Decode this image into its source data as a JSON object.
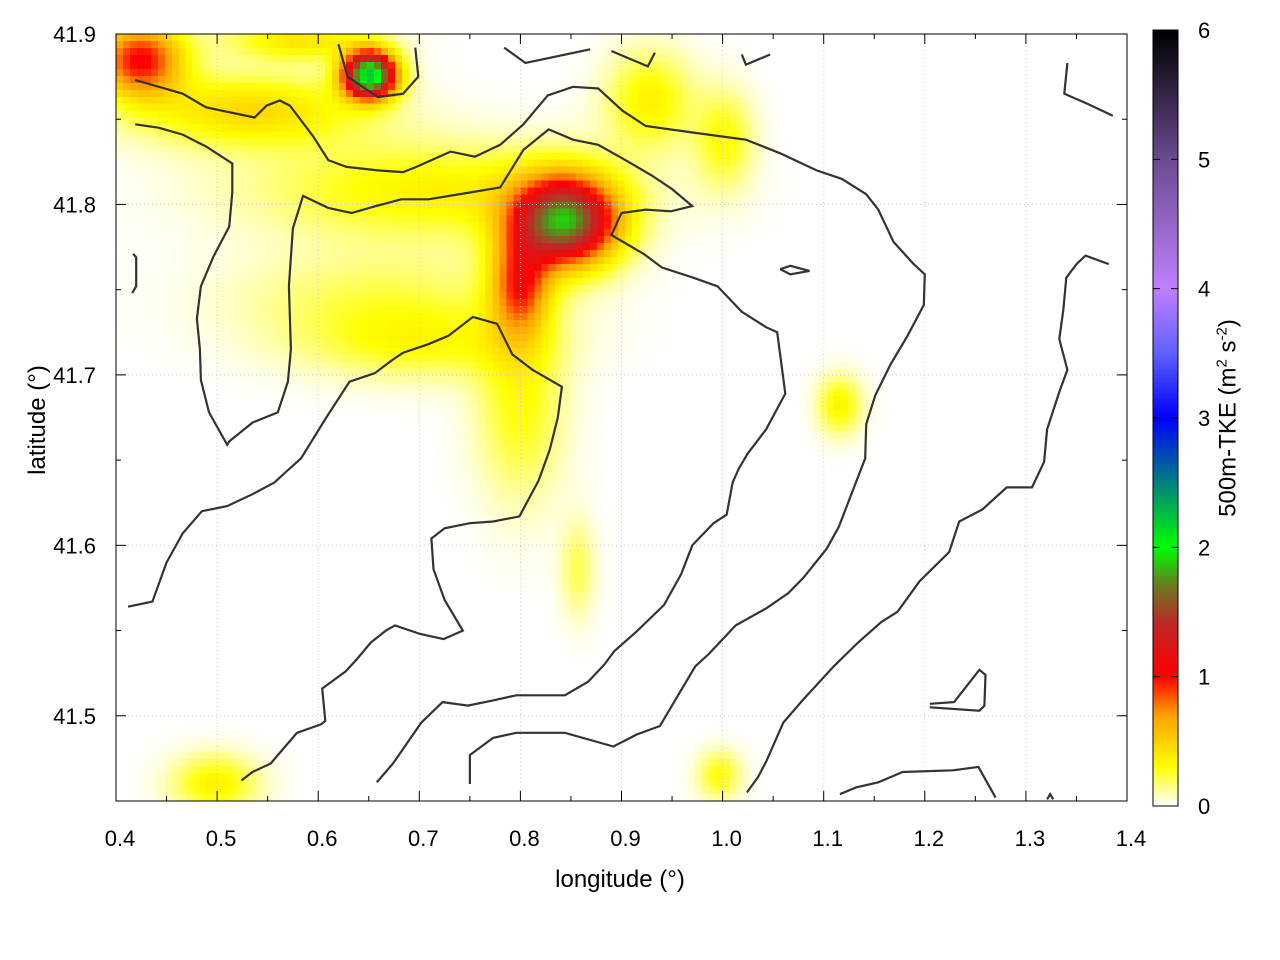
{
  "chart_data": {
    "type": "heatmap",
    "xlabel": "longitude (°)",
    "ylabel": "latitude (°)",
    "xlim": [
      0.4,
      1.4
    ],
    "ylim": [
      41.45,
      41.9
    ],
    "x_ticks": [
      "0.4",
      "0.5",
      "0.6",
      "0.7",
      "0.8",
      "0.9",
      "1.0",
      "1.1",
      "1.2",
      "1.3",
      "1.4"
    ],
    "y_ticks": [
      "41.5",
      "41.6",
      "41.7",
      "41.8",
      "41.9"
    ],
    "grid": true,
    "colorbar": {
      "label_main": "500m-TKE (m",
      "label_sup1": "2",
      "label_mid": " s",
      "label_sup2": "-2",
      "label_end": ")",
      "range": [
        0,
        6
      ],
      "ticks": [
        "0",
        "1",
        "2",
        "3",
        "4",
        "5",
        "6"
      ],
      "stops": [
        {
          "v": 0,
          "c": "#ffffff"
        },
        {
          "v": 0.3,
          "c": "#ffff00"
        },
        {
          "v": 0.7,
          "c": "#ffa000"
        },
        {
          "v": 1.0,
          "c": "#ff0000"
        },
        {
          "v": 1.4,
          "c": "#c02828"
        },
        {
          "v": 1.7,
          "c": "#6a7a20"
        },
        {
          "v": 2.0,
          "c": "#00ff00"
        },
        {
          "v": 2.5,
          "c": "#008080"
        },
        {
          "v": 3.0,
          "c": "#0000ff"
        },
        {
          "v": 3.5,
          "c": "#6060ff"
        },
        {
          "v": 4.0,
          "c": "#c080ff"
        },
        {
          "v": 5.0,
          "c": "#6a4c90"
        },
        {
          "v": 6.0,
          "c": "#000000"
        }
      ]
    },
    "tke_field_maxima": [
      {
        "lon": 0.651,
        "lat": 41.876,
        "tke": 2.2,
        "slon": 0.018,
        "slat": 0.0095
      },
      {
        "lon": 0.844,
        "lat": 41.79,
        "tke": 1.75,
        "slon": 0.036,
        "slat": 0.018
      },
      {
        "lon": 0.8,
        "lat": 41.753,
        "tke": 0.8,
        "slon": 0.02,
        "slat": 0.02
      },
      {
        "lon": 0.424,
        "lat": 41.885,
        "tke": 1.0,
        "slon": 0.03,
        "slat": 0.015
      },
      {
        "lon": 0.533,
        "lat": 41.855,
        "tke": 0.45,
        "slon": 0.08,
        "slat": 0.015
      },
      {
        "lon": 0.711,
        "lat": 41.808,
        "tke": 0.35,
        "slon": 0.12,
        "slat": 0.02
      },
      {
        "lon": 0.701,
        "lat": 41.718,
        "tke": 0.25,
        "slon": 0.08,
        "slat": 0.015
      },
      {
        "lon": 0.8,
        "lat": 41.685,
        "tke": 0.3,
        "slon": 0.03,
        "slat": 0.04
      },
      {
        "lon": 0.928,
        "lat": 41.861,
        "tke": 0.35,
        "slon": 0.03,
        "slat": 0.02
      },
      {
        "lon": 1.002,
        "lat": 41.838,
        "tke": 0.3,
        "slon": 0.02,
        "slat": 0.02
      },
      {
        "lon": 1.116,
        "lat": 41.682,
        "tke": 0.35,
        "slon": 0.015,
        "slat": 0.012
      },
      {
        "lon": 0.857,
        "lat": 41.586,
        "tke": 0.2,
        "slon": 0.012,
        "slat": 0.02
      },
      {
        "lon": 0.997,
        "lat": 41.465,
        "tke": 0.3,
        "slon": 0.015,
        "slat": 0.01
      },
      {
        "lon": 0.498,
        "lat": 41.46,
        "tke": 0.35,
        "slon": 0.03,
        "slat": 0.012
      },
      {
        "lon": 0.582,
        "lat": 41.896,
        "tke": 0.4,
        "slon": 0.05,
        "slat": 0.008
      },
      {
        "lon": 0.661,
        "lat": 41.744,
        "tke": 0.2,
        "slon": 0.1,
        "slat": 0.02
      }
    ],
    "contours": [
      [
        [
          0.419,
          41.873
        ],
        [
          0.466,
          41.865
        ],
        [
          0.489,
          41.857
        ],
        [
          0.537,
          41.851
        ],
        [
          0.549,
          41.858
        ],
        [
          0.562,
          41.861
        ],
        [
          0.572,
          41.858
        ],
        [
          0.595,
          41.84
        ],
        [
          0.61,
          41.826
        ],
        [
          0.628,
          41.822
        ],
        [
          0.659,
          41.82
        ],
        [
          0.684,
          41.819
        ],
        [
          0.697,
          41.822
        ],
        [
          0.731,
          41.831
        ],
        [
          0.755,
          41.828
        ],
        [
          0.78,
          41.835
        ],
        [
          0.803,
          41.847
        ],
        [
          0.827,
          41.864
        ],
        [
          0.852,
          41.869
        ],
        [
          0.877,
          41.868
        ],
        [
          0.901,
          41.855
        ],
        [
          0.924,
          41.846
        ],
        [
          0.973,
          41.842
        ],
        [
          1.023,
          41.838
        ],
        [
          1.057,
          41.83
        ],
        [
          1.093,
          41.82
        ],
        [
          1.118,
          41.815
        ],
        [
          1.142,
          41.806
        ],
        [
          1.154,
          41.797
        ],
        [
          1.169,
          41.778
        ],
        [
          1.189,
          41.765
        ],
        [
          1.2,
          41.759
        ],
        [
          1.199,
          41.741
        ],
        [
          1.183,
          41.723
        ],
        [
          1.166,
          41.706
        ],
        [
          1.151,
          41.688
        ],
        [
          1.142,
          41.671
        ],
        [
          1.141,
          41.651
        ],
        [
          1.13,
          41.634
        ],
        [
          1.115,
          41.611
        ],
        [
          1.103,
          41.598
        ],
        [
          1.08,
          41.581
        ],
        [
          1.065,
          41.572
        ],
        [
          1.043,
          41.563
        ],
        [
          1.013,
          41.553
        ],
        [
          0.986,
          41.536
        ],
        [
          0.973,
          41.529
        ],
        [
          0.959,
          41.515
        ],
        [
          0.938,
          41.494
        ],
        [
          0.915,
          41.489
        ],
        [
          0.892,
          41.482
        ],
        [
          0.844,
          41.49
        ],
        [
          0.796,
          41.49
        ],
        [
          0.773,
          41.487
        ],
        [
          0.75,
          41.477
        ],
        [
          0.75,
          41.46
        ]
      ],
      [
        [
          0.419,
          41.847
        ],
        [
          0.442,
          41.845
        ],
        [
          0.466,
          41.841
        ],
        [
          0.489,
          41.834
        ],
        [
          0.515,
          41.824
        ],
        [
          0.515,
          41.807
        ],
        [
          0.512,
          41.787
        ],
        [
          0.496,
          41.769
        ],
        [
          0.484,
          41.752
        ],
        [
          0.48,
          41.733
        ],
        [
          0.483,
          41.715
        ],
        [
          0.484,
          41.697
        ],
        [
          0.492,
          41.678
        ],
        [
          0.51,
          41.659
        ],
        [
          0.512,
          41.661
        ],
        [
          0.535,
          41.672
        ],
        [
          0.56,
          41.678
        ],
        [
          0.57,
          41.696
        ],
        [
          0.573,
          41.715
        ],
        [
          0.571,
          41.752
        ],
        [
          0.575,
          41.786
        ],
        [
          0.585,
          41.805
        ],
        [
          0.61,
          41.798
        ],
        [
          0.633,
          41.795
        ],
        [
          0.657,
          41.799
        ],
        [
          0.682,
          41.803
        ],
        [
          0.709,
          41.803
        ],
        [
          0.75,
          41.807
        ],
        [
          0.78,
          41.81
        ],
        [
          0.803,
          41.832
        ],
        [
          0.828,
          41.844
        ],
        [
          0.852,
          41.838
        ],
        [
          0.877,
          41.835
        ],
        [
          0.901,
          41.827
        ],
        [
          0.93,
          41.817
        ],
        [
          0.95,
          41.809
        ],
        [
          0.97,
          41.799
        ],
        [
          0.949,
          41.796
        ],
        [
          0.924,
          41.797
        ],
        [
          0.9,
          41.795
        ],
        [
          0.89,
          41.782
        ],
        [
          0.922,
          41.771
        ],
        [
          0.94,
          41.763
        ],
        [
          0.971,
          41.757
        ],
        [
          0.995,
          41.752
        ],
        [
          1.019,
          41.737
        ],
        [
          1.043,
          41.728
        ],
        [
          1.054,
          41.725
        ],
        [
          1.062,
          41.689
        ],
        [
          1.043,
          41.668
        ],
        [
          1.025,
          41.654
        ],
        [
          1.016,
          41.645
        ],
        [
          1.01,
          41.637
        ],
        [
          1.004,
          41.618
        ],
        [
          0.991,
          41.613
        ],
        [
          0.97,
          41.6
        ],
        [
          0.959,
          41.583
        ],
        [
          0.942,
          41.565
        ],
        [
          0.914,
          41.549
        ],
        [
          0.893,
          41.538
        ],
        [
          0.883,
          41.53
        ],
        [
          0.867,
          41.52
        ],
        [
          0.844,
          41.512
        ],
        [
          0.796,
          41.512
        ],
        [
          0.773,
          41.509
        ],
        [
          0.748,
          41.506
        ],
        [
          0.723,
          41.508
        ],
        [
          0.702,
          41.496
        ],
        [
          0.674,
          41.472
        ],
        [
          0.658,
          41.461
        ]
      ],
      [
        [
          0.412,
          41.564
        ],
        [
          0.436,
          41.567
        ],
        [
          0.45,
          41.59
        ],
        [
          0.466,
          41.607
        ],
        [
          0.485,
          41.62
        ],
        [
          0.51,
          41.623
        ],
        [
          0.535,
          41.63
        ],
        [
          0.557,
          41.637
        ],
        [
          0.568,
          41.643
        ],
        [
          0.583,
          41.651
        ],
        [
          0.608,
          41.675
        ],
        [
          0.631,
          41.696
        ],
        [
          0.656,
          41.701
        ],
        [
          0.674,
          41.709
        ],
        [
          0.684,
          41.713
        ],
        [
          0.709,
          41.718
        ],
        [
          0.729,
          41.723
        ],
        [
          0.753,
          41.734
        ],
        [
          0.777,
          41.73
        ],
        [
          0.792,
          41.712
        ],
        [
          0.812,
          41.703
        ],
        [
          0.841,
          41.693
        ],
        [
          0.837,
          41.675
        ],
        [
          0.829,
          41.656
        ],
        [
          0.818,
          41.638
        ],
        [
          0.799,
          41.617
        ],
        [
          0.773,
          41.614
        ],
        [
          0.75,
          41.613
        ],
        [
          0.725,
          41.61
        ],
        [
          0.712,
          41.604
        ],
        [
          0.714,
          41.586
        ],
        [
          0.725,
          41.568
        ],
        [
          0.743,
          41.55
        ],
        [
          0.724,
          41.545
        ],
        [
          0.701,
          41.548
        ],
        [
          0.676,
          41.553
        ],
        [
          0.667,
          41.55
        ],
        [
          0.652,
          41.543
        ],
        [
          0.638,
          41.533
        ],
        [
          0.627,
          41.526
        ],
        [
          0.604,
          41.516
        ],
        [
          0.607,
          41.497
        ],
        [
          0.603,
          41.495
        ],
        [
          0.579,
          41.49
        ],
        [
          0.563,
          41.479
        ],
        [
          0.553,
          41.472
        ],
        [
          0.535,
          41.467
        ],
        [
          0.524,
          41.462
        ]
      ],
      [
        [
          0.62,
          41.894
        ],
        [
          0.629,
          41.875
        ],
        [
          0.659,
          41.863
        ],
        [
          0.684,
          41.865
        ],
        [
          0.699,
          41.875
        ],
        [
          0.696,
          41.892
        ]
      ],
      [
        [
          0.784,
          41.892
        ],
        [
          0.805,
          41.883
        ],
        [
          0.869,
          41.891
        ]
      ],
      [
        [
          0.89,
          41.89
        ],
        [
          0.926,
          41.881
        ],
        [
          0.933,
          41.889
        ]
      ],
      [
        [
          1.019,
          41.888
        ],
        [
          1.023,
          41.882
        ],
        [
          1.047,
          41.888
        ]
      ],
      [
        [
          1.341,
          41.883
        ],
        [
          1.338,
          41.865
        ],
        [
          1.361,
          41.859
        ],
        [
          1.386,
          41.852
        ]
      ],
      [
        [
          1.382,
          41.765
        ],
        [
          1.359,
          41.77
        ],
        [
          1.35,
          41.765
        ],
        [
          1.34,
          41.757
        ],
        [
          1.337,
          41.738
        ],
        [
          1.333,
          41.721
        ],
        [
          1.341,
          41.703
        ],
        [
          1.333,
          41.69
        ],
        [
          1.321,
          41.668
        ],
        [
          1.318,
          41.649
        ],
        [
          1.306,
          41.634
        ],
        [
          1.281,
          41.634
        ],
        [
          1.257,
          41.621
        ],
        [
          1.234,
          41.614
        ],
        [
          1.224,
          41.596
        ],
        [
          1.195,
          41.579
        ],
        [
          1.173,
          41.561
        ],
        [
          1.157,
          41.555
        ],
        [
          1.134,
          41.543
        ],
        [
          1.11,
          41.529
        ],
        [
          1.079,
          41.509
        ],
        [
          1.06,
          41.496
        ],
        [
          1.043,
          41.473
        ],
        [
          1.035,
          41.464
        ],
        [
          1.024,
          41.455
        ]
      ],
      [
        [
          1.057,
          41.762
        ],
        [
          1.067,
          41.764
        ],
        [
          1.086,
          41.761
        ],
        [
          1.067,
          41.759
        ],
        [
          1.057,
          41.762
        ]
      ],
      [
        [
          1.205,
          41.507
        ],
        [
          1.229,
          41.508
        ],
        [
          1.254,
          41.527
        ],
        [
          1.26,
          41.524
        ],
        [
          1.259,
          41.506
        ],
        [
          1.254,
          41.503
        ],
        [
          1.205,
          41.505
        ]
      ],
      [
        [
          1.116,
          41.454
        ],
        [
          1.132,
          41.458
        ],
        [
          1.154,
          41.461
        ],
        [
          1.178,
          41.467
        ],
        [
          1.228,
          41.468
        ],
        [
          1.253,
          41.47
        ],
        [
          1.27,
          41.452
        ]
      ],
      [
        [
          0.417,
          41.771
        ],
        [
          0.42,
          41.769
        ],
        [
          0.42,
          41.752
        ],
        [
          0.416,
          41.748
        ]
      ],
      [
        [
          1.321,
          41.451
        ],
        [
          1.324,
          41.454
        ],
        [
          1.327,
          41.451
        ]
      ]
    ]
  }
}
